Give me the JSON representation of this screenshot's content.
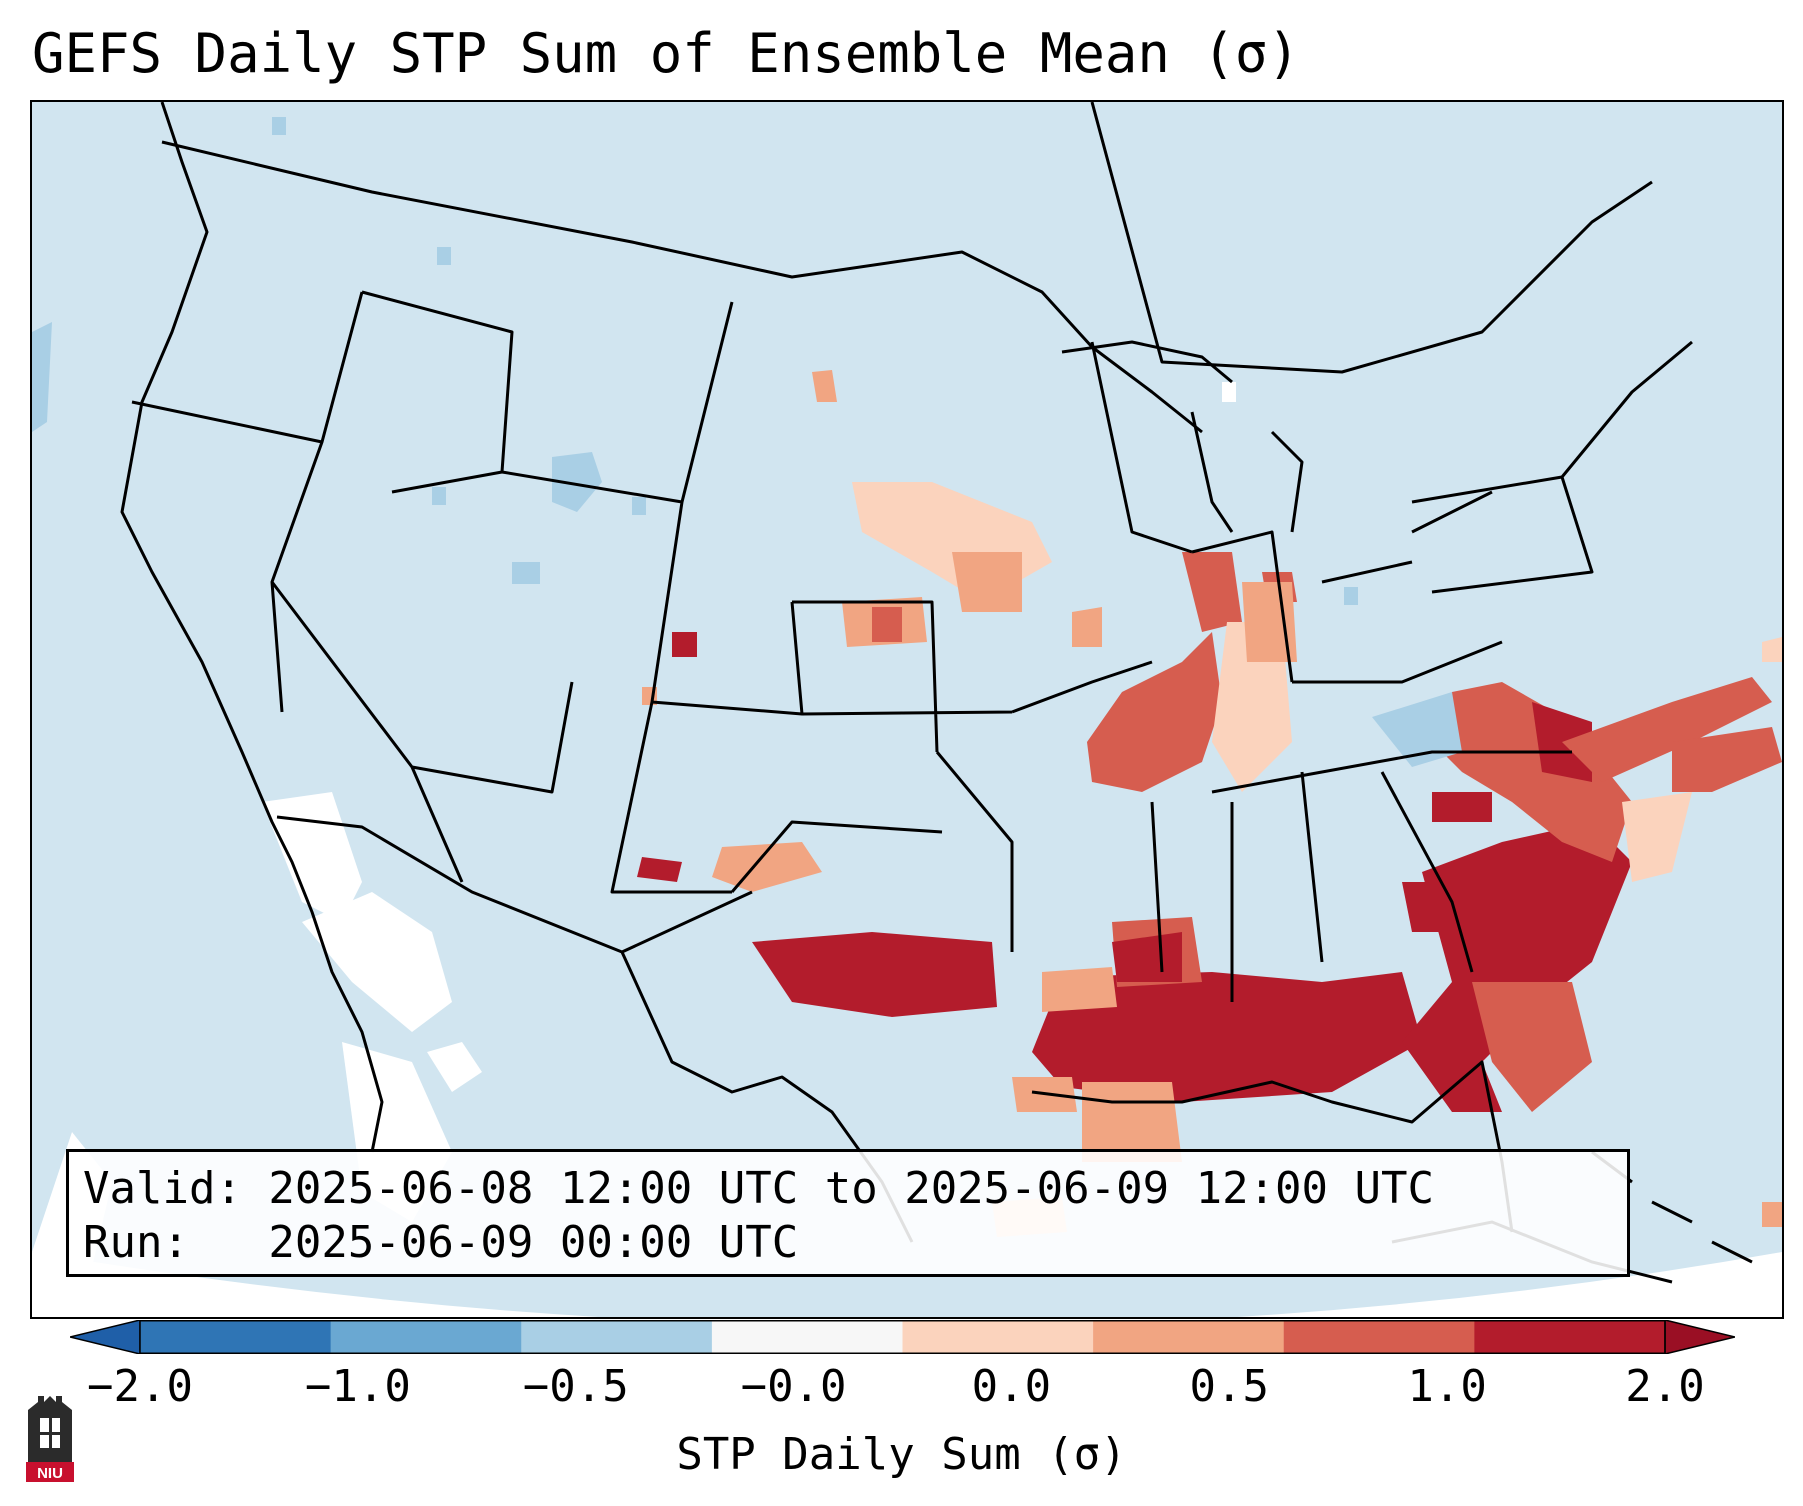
{
  "title": "GEFS Daily STP Sum of Ensemble Mean (σ)",
  "info": {
    "valid_line": "Valid: 2025-06-08 12:00 UTC to 2025-06-09 12:00 UTC",
    "run_line": "Run:   2025-06-09 00:00 UTC"
  },
  "colorbar": {
    "label": "STP Daily Sum (σ)",
    "ticks": [
      "−2.0",
      "−1.0",
      "−0.5",
      "−0.0",
      "0.0",
      "0.5",
      "1.0",
      "2.0"
    ],
    "colors": [
      "#2f75b5",
      "#6aa8d2",
      "#a9cfe5",
      "#f7f7f7",
      "#fbd3bd",
      "#f1a582",
      "#d65d4f",
      "#b31c2c"
    ],
    "extend_low_color": "#1f5fa8",
    "extend_high_color": "#9a0f24"
  },
  "map": {
    "background_color": "#d1e5f0",
    "outside_color": "#ffffff",
    "border_color": "#000000"
  },
  "logo": {
    "text": "NIU",
    "colors": {
      "tower": "#2b2b2b",
      "banner": "#c8102e"
    }
  }
}
